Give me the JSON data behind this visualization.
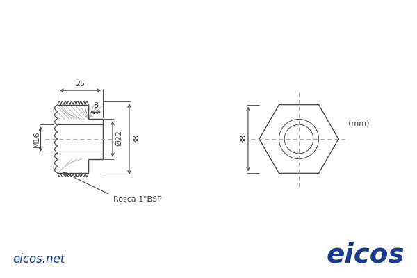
{
  "bg_color": "#ffffff",
  "line_color": "#404040",
  "dim_color": "#404040",
  "blue_color": "#1a3a8c",
  "dashed_color": "#aaaaaa",
  "label_rosca": "Rosca 1\"BSP",
  "label_m16": "M16",
  "label_25": "25",
  "label_8": "8",
  "label_22": "Ø22",
  "label_38_left": "38",
  "label_38_right": "38",
  "label_mm": "(mm)",
  "label_eicos_net": "eicos.net",
  "label_eicos": "eicos",
  "fig_width": 6.0,
  "fig_height": 4.0,
  "dpi": 100
}
